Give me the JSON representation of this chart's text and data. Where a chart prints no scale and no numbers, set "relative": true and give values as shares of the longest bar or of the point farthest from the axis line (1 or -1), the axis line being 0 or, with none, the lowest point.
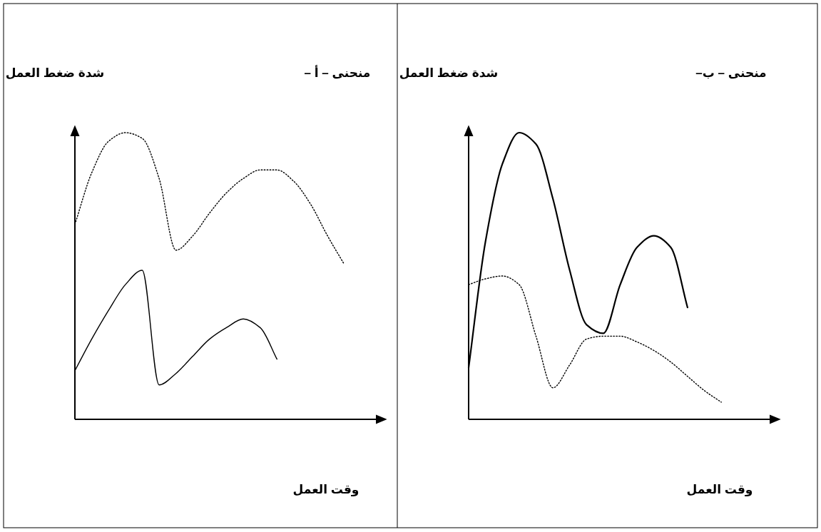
{
  "chart_data": [
    {
      "type": "line",
      "title": "منحنى – أ –",
      "ylabel": "شدة ضغط العمل",
      "xlabel": "وقت العمل",
      "relative": true,
      "grid": false,
      "marker": "none",
      "categories": [
        null,
        null,
        null,
        null,
        null,
        null,
        null,
        null,
        null,
        null,
        null,
        null,
        null,
        null,
        null,
        null,
        null,
        null
      ],
      "series": [
        {
          "color": "#000000",
          "line_style": "dotted",
          "values": [
            0.68,
            0.86,
            0.97,
            1.0,
            0.98,
            0.84,
            0.59,
            0.64,
            0.72,
            0.79,
            0.84,
            0.87,
            0.87,
            0.83,
            0.75,
            0.64,
            0.54,
            null
          ]
        },
        {
          "color": "#000000",
          "line_style": "solid",
          "values": [
            0.17,
            0.28,
            0.38,
            0.47,
            0.52,
            0.12,
            0.16,
            0.22,
            0.28,
            0.32,
            0.35,
            0.32,
            0.21,
            null,
            null,
            null,
            null,
            null
          ]
        }
      ]
    },
    {
      "type": "line",
      "title": "منحنى – ب–",
      "ylabel": "شدة ضغط العمل",
      "xlabel": "وقت العمل",
      "relative": true,
      "grid": false,
      "marker": "none",
      "categories": [
        null,
        null,
        null,
        null,
        null,
        null,
        null,
        null,
        null,
        null,
        null,
        null,
        null,
        null,
        null,
        null,
        null,
        null
      ],
      "series": [
        {
          "color": "#000000",
          "line_style": "solid",
          "values": [
            0.18,
            0.62,
            0.89,
            1.0,
            0.96,
            0.77,
            0.52,
            0.33,
            0.3,
            0.47,
            0.6,
            0.64,
            0.6,
            0.39,
            null,
            null,
            null,
            null
          ]
        },
        {
          "color": "#000000",
          "line_style": "dotted",
          "values": [
            0.47,
            0.49,
            0.5,
            0.47,
            0.29,
            0.11,
            0.19,
            0.28,
            0.29,
            0.29,
            0.27,
            0.24,
            0.2,
            0.15,
            0.1,
            0.06,
            null,
            null
          ]
        }
      ]
    }
  ]
}
